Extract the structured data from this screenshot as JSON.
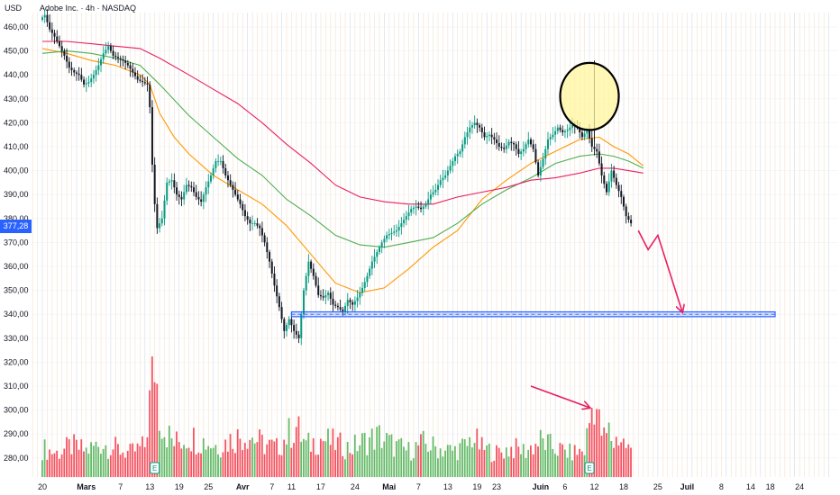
{
  "header": {
    "currency": "USD",
    "title": "Adobe Inc. · 4h · NASDAQ"
  },
  "price_label": {
    "text": "377,28",
    "color": "#2962ff"
  },
  "colors": {
    "up_candle": "#089981",
    "down_candle": "#131722",
    "volume_up": "#4caf50",
    "volume_down": "#f23645",
    "ma_orange": "#ff9800",
    "ma_green": "#4caf50",
    "ma_red": "#e91e63",
    "support": "#2962ff",
    "arrow": "#e91e63",
    "circle_fill": "#fff59d",
    "grid_weekday": "#e8c9a8",
    "grid_week": "#cfd6e6"
  },
  "icons": [
    "earnings-icon"
  ],
  "chart_data": {
    "type": "candlestick",
    "title": "Adobe Inc. · 4h · NASDAQ",
    "currency": "USD",
    "ylim": [
      272,
      467
    ],
    "y_ticks": [
      "460,00",
      "450,00",
      "440,00",
      "430,00",
      "420,00",
      "410,00",
      "400,00",
      "390,00",
      "380,00",
      "370,00",
      "360,00",
      "350,00",
      "340,00",
      "330,00",
      "320,00",
      "310,00",
      "300,00",
      "290,00",
      "280,00"
    ],
    "y_tick_values": [
      460,
      450,
      440,
      430,
      420,
      410,
      400,
      390,
      380,
      370,
      360,
      350,
      340,
      330,
      320,
      310,
      300,
      290,
      280
    ],
    "x_ticks": [
      {
        "label": "20",
        "day": 0,
        "month": false
      },
      {
        "label": "Mars",
        "day": 9,
        "month": true
      },
      {
        "label": "7",
        "day": 16,
        "month": false
      },
      {
        "label": "13",
        "day": 22,
        "month": false
      },
      {
        "label": "19",
        "day": 28,
        "month": false
      },
      {
        "label": "25",
        "day": 34,
        "month": false
      },
      {
        "label": "Avr",
        "day": 41,
        "month": true
      },
      {
        "label": "7",
        "day": 47,
        "month": false
      },
      {
        "label": "11",
        "day": 51,
        "month": false
      },
      {
        "label": "17",
        "day": 57,
        "month": false
      },
      {
        "label": "24",
        "day": 64,
        "month": false
      },
      {
        "label": "Mai",
        "day": 71,
        "month": true
      },
      {
        "label": "7",
        "day": 77,
        "month": false
      },
      {
        "label": "13",
        "day": 83,
        "month": false
      },
      {
        "label": "19",
        "day": 89,
        "month": false
      },
      {
        "label": "23",
        "day": 93,
        "month": false
      },
      {
        "label": "Juin",
        "day": 102,
        "month": true
      },
      {
        "label": "6",
        "day": 107,
        "month": false
      },
      {
        "label": "12",
        "day": 113,
        "month": false
      },
      {
        "label": "18",
        "day": 119,
        "month": false
      },
      {
        "label": "25",
        "day": 126,
        "month": false
      },
      {
        "label": "Juil",
        "day": 132,
        "month": true
      },
      {
        "label": "8",
        "day": 139,
        "month": false
      },
      {
        "label": "14",
        "day": 145,
        "month": false
      },
      {
        "label": "18",
        "day": 149,
        "month": false
      },
      {
        "label": "24",
        "day": 155,
        "month": false
      }
    ],
    "price_path": [
      [
        0,
        463
      ],
      [
        1,
        465
      ],
      [
        2,
        459
      ],
      [
        3,
        456
      ],
      [
        4,
        452
      ],
      [
        5,
        448
      ],
      [
        6,
        443
      ],
      [
        7,
        441
      ],
      [
        8,
        440
      ],
      [
        9,
        436
      ],
      [
        10,
        437
      ],
      [
        11,
        440
      ],
      [
        12,
        444
      ],
      [
        13,
        449
      ],
      [
        14,
        452
      ],
      [
        15,
        448
      ],
      [
        16,
        447
      ],
      [
        17,
        446
      ],
      [
        18,
        444
      ],
      [
        19,
        441
      ],
      [
        20,
        438
      ],
      [
        21,
        437
      ],
      [
        22,
        436
      ],
      [
        22.4,
        432
      ],
      [
        22.8,
        410
      ],
      [
        23.2,
        395
      ],
      [
        23.6,
        383
      ],
      [
        24,
        376
      ],
      [
        25,
        380
      ],
      [
        26,
        395
      ],
      [
        27,
        396
      ],
      [
        28,
        390
      ],
      [
        29,
        388
      ],
      [
        30,
        394
      ],
      [
        31,
        393
      ],
      [
        32,
        389
      ],
      [
        33,
        387
      ],
      [
        34,
        393
      ],
      [
        35,
        398
      ],
      [
        36,
        404
      ],
      [
        37,
        404
      ],
      [
        38,
        398
      ],
      [
        39,
        394
      ],
      [
        40,
        390
      ],
      [
        41,
        386
      ],
      [
        42,
        381
      ],
      [
        43,
        378
      ],
      [
        44,
        378
      ],
      [
        45,
        376
      ],
      [
        46,
        370
      ],
      [
        47,
        362
      ],
      [
        48,
        352
      ],
      [
        49,
        343
      ],
      [
        50,
        333
      ],
      [
        51,
        338
      ],
      [
        52,
        333
      ],
      [
        53,
        330
      ],
      [
        54,
        350
      ],
      [
        55,
        362
      ],
      [
        56,
        356
      ],
      [
        57,
        348
      ],
      [
        58,
        347
      ],
      [
        59,
        349
      ],
      [
        60,
        344
      ],
      [
        61,
        343
      ],
      [
        62,
        341
      ],
      [
        63,
        346
      ],
      [
        64,
        344
      ],
      [
        65,
        347
      ],
      [
        66,
        351
      ],
      [
        67,
        356
      ],
      [
        68,
        362
      ],
      [
        69,
        366
      ],
      [
        70,
        370
      ],
      [
        71,
        373
      ],
      [
        72,
        374
      ],
      [
        73,
        375
      ],
      [
        74,
        378
      ],
      [
        75,
        381
      ],
      [
        76,
        384
      ],
      [
        77,
        385
      ],
      [
        78,
        384
      ],
      [
        79,
        386
      ],
      [
        80,
        390
      ],
      [
        81,
        392
      ],
      [
        82,
        396
      ],
      [
        83,
        398
      ],
      [
        84,
        402
      ],
      [
        85,
        406
      ],
      [
        86,
        408
      ],
      [
        87,
        414
      ],
      [
        88,
        418
      ],
      [
        89,
        420
      ],
      [
        90,
        418
      ],
      [
        91,
        414
      ],
      [
        92,
        415
      ],
      [
        93,
        413
      ],
      [
        94,
        410
      ],
      [
        95,
        409
      ],
      [
        96,
        412
      ],
      [
        97,
        411
      ],
      [
        98,
        407
      ],
      [
        99,
        409
      ],
      [
        100,
        413
      ],
      [
        101,
        409
      ],
      [
        102,
        398
      ],
      [
        103,
        405
      ],
      [
        104,
        413
      ],
      [
        105,
        415
      ],
      [
        106,
        418
      ],
      [
        107,
        416
      ],
      [
        108,
        417
      ],
      [
        109,
        419
      ],
      [
        110,
        418
      ],
      [
        111,
        414
      ],
      [
        112,
        417
      ],
      [
        113,
        410
      ],
      [
        114,
        408
      ],
      [
        115,
        398
      ],
      [
        116,
        391
      ],
      [
        117,
        400
      ],
      [
        118,
        394
      ],
      [
        119,
        389
      ],
      [
        120,
        381
      ],
      [
        121,
        378
      ]
    ],
    "moving_averages": [
      {
        "color_key": "ma_orange",
        "points": [
          [
            0,
            451
          ],
          [
            5,
            449
          ],
          [
            10,
            446
          ],
          [
            15,
            444
          ],
          [
            20,
            440
          ],
          [
            22,
            436
          ],
          [
            24,
            424
          ],
          [
            27,
            414
          ],
          [
            30,
            407
          ],
          [
            35,
            398
          ],
          [
            40,
            392
          ],
          [
            45,
            386
          ],
          [
            50,
            377
          ],
          [
            55,
            365
          ],
          [
            60,
            353
          ],
          [
            65,
            349
          ],
          [
            70,
            351
          ],
          [
            75,
            359
          ],
          [
            80,
            368
          ],
          [
            85,
            375
          ],
          [
            90,
            388
          ],
          [
            95,
            396
          ],
          [
            100,
            403
          ],
          [
            105,
            408
          ],
          [
            110,
            413
          ],
          [
            114,
            414
          ],
          [
            117,
            410
          ],
          [
            120,
            407
          ],
          [
            123,
            402
          ]
        ]
      },
      {
        "color_key": "ma_green",
        "points": [
          [
            0,
            449
          ],
          [
            5,
            450
          ],
          [
            10,
            449
          ],
          [
            15,
            447
          ],
          [
            20,
            444
          ],
          [
            24,
            436
          ],
          [
            30,
            423
          ],
          [
            35,
            414
          ],
          [
            40,
            405
          ],
          [
            45,
            398
          ],
          [
            50,
            388
          ],
          [
            55,
            381
          ],
          [
            60,
            373
          ],
          [
            65,
            369
          ],
          [
            70,
            368
          ],
          [
            75,
            370
          ],
          [
            80,
            372
          ],
          [
            85,
            378
          ],
          [
            90,
            386
          ],
          [
            95,
            392
          ],
          [
            100,
            397
          ],
          [
            105,
            403
          ],
          [
            110,
            406
          ],
          [
            114,
            407
          ],
          [
            117,
            406
          ],
          [
            120,
            404
          ],
          [
            123,
            401
          ]
        ]
      },
      {
        "color_key": "ma_red",
        "points": [
          [
            0,
            454
          ],
          [
            5,
            454
          ],
          [
            10,
            453
          ],
          [
            15,
            452
          ],
          [
            20,
            451
          ],
          [
            24,
            447
          ],
          [
            30,
            440
          ],
          [
            35,
            434
          ],
          [
            40,
            428
          ],
          [
            45,
            420
          ],
          [
            50,
            411
          ],
          [
            55,
            403
          ],
          [
            60,
            394
          ],
          [
            65,
            389
          ],
          [
            70,
            387
          ],
          [
            75,
            386
          ],
          [
            80,
            386
          ],
          [
            85,
            389
          ],
          [
            90,
            391
          ],
          [
            95,
            393
          ],
          [
            100,
            396
          ],
          [
            105,
            397
          ],
          [
            110,
            399
          ],
          [
            114,
            401
          ],
          [
            117,
            401
          ],
          [
            120,
            400
          ],
          [
            123,
            399
          ]
        ]
      }
    ],
    "volume_profile": [
      [
        0,
        284
      ],
      [
        3,
        282
      ],
      [
        6,
        285
      ],
      [
        9,
        283
      ],
      [
        12,
        286
      ],
      [
        15,
        284
      ],
      [
        18,
        282
      ],
      [
        21,
        285
      ],
      [
        23,
        321
      ],
      [
        24,
        300
      ],
      [
        25,
        292
      ],
      [
        27,
        286
      ],
      [
        30,
        289
      ],
      [
        33,
        287
      ],
      [
        36,
        285
      ],
      [
        39,
        288
      ],
      [
        42,
        290
      ],
      [
        45,
        286
      ],
      [
        48,
        284
      ],
      [
        50,
        289
      ],
      [
        52,
        293
      ],
      [
        54,
        285
      ],
      [
        57,
        288
      ],
      [
        60,
        286
      ],
      [
        63,
        284
      ],
      [
        66,
        287
      ],
      [
        69,
        289
      ],
      [
        72,
        285
      ],
      [
        75,
        283
      ],
      [
        78,
        286
      ],
      [
        81,
        284
      ],
      [
        84,
        283
      ],
      [
        87,
        285
      ],
      [
        88,
        289
      ],
      [
        90,
        284
      ],
      [
        93,
        282
      ],
      [
        96,
        284
      ],
      [
        99,
        283
      ],
      [
        102,
        287
      ],
      [
        105,
        284
      ],
      [
        108,
        282
      ],
      [
        111,
        283
      ],
      [
        112,
        295
      ],
      [
        113,
        307
      ],
      [
        114,
        294
      ],
      [
        115,
        288
      ],
      [
        116,
        291
      ],
      [
        117,
        286
      ],
      [
        118,
        289
      ],
      [
        120,
        284
      ],
      [
        121,
        281
      ]
    ],
    "support_zone": {
      "y0": 339,
      "y1": 341,
      "x_from": 51,
      "x_to": 150
    },
    "annotations": [
      {
        "type": "circle",
        "cx_day": 112,
        "cy_value": 431,
        "rx_days": 6,
        "ry_values": 14
      },
      {
        "type": "arrow",
        "points": [
          [
            122,
            375
          ],
          [
            124,
            367
          ],
          [
            126,
            373
          ],
          [
            131,
            341
          ]
        ]
      },
      {
        "type": "arrow",
        "points": [
          [
            100,
            310
          ],
          [
            112,
            301
          ]
        ]
      }
    ],
    "earnings_markers": [
      23,
      112
    ],
    "last_price": 377.28
  }
}
